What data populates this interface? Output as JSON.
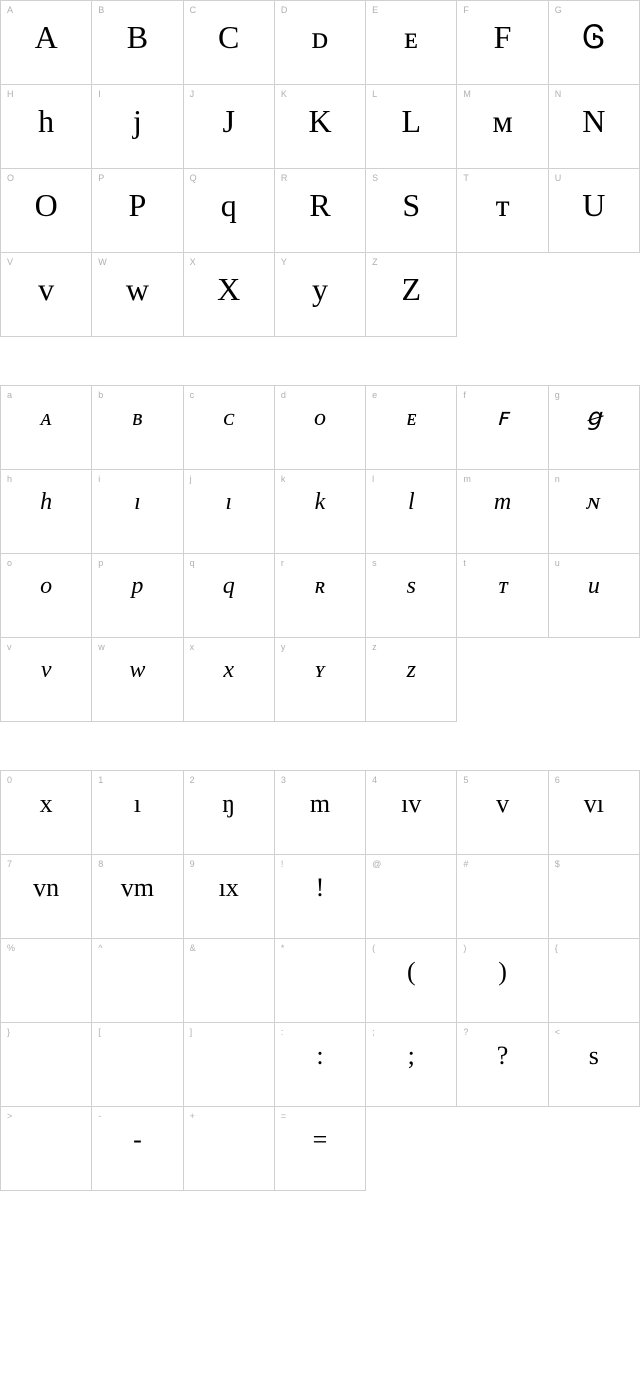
{
  "sections": {
    "uppercase": {
      "cells": [
        {
          "label": "A",
          "glyph": "A"
        },
        {
          "label": "B",
          "glyph": "B"
        },
        {
          "label": "C",
          "glyph": "C"
        },
        {
          "label": "D",
          "glyph": "ᴅ"
        },
        {
          "label": "E",
          "glyph": "ᴇ"
        },
        {
          "label": "F",
          "glyph": "F"
        },
        {
          "label": "G",
          "glyph": "Ꮆ"
        },
        {
          "label": "H",
          "glyph": "h"
        },
        {
          "label": "I",
          "glyph": "j"
        },
        {
          "label": "J",
          "glyph": "J"
        },
        {
          "label": "K",
          "glyph": "K"
        },
        {
          "label": "L",
          "glyph": "L"
        },
        {
          "label": "M",
          "glyph": "ᴍ"
        },
        {
          "label": "N",
          "glyph": "N"
        },
        {
          "label": "O",
          "glyph": "O"
        },
        {
          "label": "P",
          "glyph": "P"
        },
        {
          "label": "Q",
          "glyph": "q"
        },
        {
          "label": "R",
          "glyph": "R"
        },
        {
          "label": "S",
          "glyph": "S"
        },
        {
          "label": "T",
          "glyph": "ᴛ"
        },
        {
          "label": "U",
          "glyph": "U"
        },
        {
          "label": "V",
          "glyph": "ᴠ"
        },
        {
          "label": "W",
          "glyph": "ᴡ"
        },
        {
          "label": "X",
          "glyph": "X"
        },
        {
          "label": "Y",
          "glyph": "y"
        },
        {
          "label": "Z",
          "glyph": "Z"
        }
      ]
    },
    "lowercase": {
      "cells": [
        {
          "label": "a",
          "glyph": "ᴀ"
        },
        {
          "label": "b",
          "glyph": "ʙ"
        },
        {
          "label": "c",
          "glyph": "ᴄ"
        },
        {
          "label": "d",
          "glyph": "ᴏ"
        },
        {
          "label": "e",
          "glyph": "ᴇ"
        },
        {
          "label": "f",
          "glyph": "ꜰ"
        },
        {
          "label": "g",
          "glyph": "ꞡ"
        },
        {
          "label": "h",
          "glyph": "h"
        },
        {
          "label": "i",
          "glyph": "ı"
        },
        {
          "label": "j",
          "glyph": "ı"
        },
        {
          "label": "k",
          "glyph": "k"
        },
        {
          "label": "l",
          "glyph": "l"
        },
        {
          "label": "m",
          "glyph": "m"
        },
        {
          "label": "n",
          "glyph": "ɴ"
        },
        {
          "label": "o",
          "glyph": "o"
        },
        {
          "label": "p",
          "glyph": "p"
        },
        {
          "label": "q",
          "glyph": "q"
        },
        {
          "label": "r",
          "glyph": "ʀ"
        },
        {
          "label": "s",
          "glyph": "s"
        },
        {
          "label": "t",
          "glyph": "ᴛ"
        },
        {
          "label": "u",
          "glyph": "u"
        },
        {
          "label": "v",
          "glyph": "v"
        },
        {
          "label": "w",
          "glyph": "w"
        },
        {
          "label": "x",
          "glyph": "x"
        },
        {
          "label": "y",
          "glyph": "ʏ"
        },
        {
          "label": "z",
          "glyph": "z"
        }
      ]
    },
    "symbols": {
      "cells": [
        {
          "label": "0",
          "glyph": "x"
        },
        {
          "label": "1",
          "glyph": "ı"
        },
        {
          "label": "2",
          "glyph": "ŋ"
        },
        {
          "label": "3",
          "glyph": "m"
        },
        {
          "label": "4",
          "glyph": "ıv"
        },
        {
          "label": "5",
          "glyph": "v"
        },
        {
          "label": "6",
          "glyph": "vı"
        },
        {
          "label": "7",
          "glyph": "vn"
        },
        {
          "label": "8",
          "glyph": "vm"
        },
        {
          "label": "9",
          "glyph": "ıx"
        },
        {
          "label": "!",
          "glyph": "!"
        },
        {
          "label": "@",
          "glyph": ""
        },
        {
          "label": "#",
          "glyph": ""
        },
        {
          "label": "$",
          "glyph": ""
        },
        {
          "label": "%",
          "glyph": ""
        },
        {
          "label": "^",
          "glyph": ""
        },
        {
          "label": "&",
          "glyph": ""
        },
        {
          "label": "*",
          "glyph": ""
        },
        {
          "label": "(",
          "glyph": "("
        },
        {
          "label": ")",
          "glyph": ")"
        },
        {
          "label": "{",
          "glyph": ""
        },
        {
          "label": "}",
          "glyph": ""
        },
        {
          "label": "[",
          "glyph": ""
        },
        {
          "label": "]",
          "glyph": ""
        },
        {
          "label": ":",
          "glyph": ":"
        },
        {
          "label": ";",
          "glyph": ";"
        },
        {
          "label": "?",
          "glyph": "?"
        },
        {
          "label": "<",
          "glyph": "s"
        },
        {
          "label": ">",
          "glyph": ""
        },
        {
          "label": "-",
          "glyph": "-"
        },
        {
          "label": "+",
          "glyph": ""
        },
        {
          "label": "=",
          "glyph": "="
        }
      ]
    }
  },
  "colors": {
    "border": "#d0d0d0",
    "label": "#b0b0b0",
    "glyph": "#000000",
    "background": "#ffffff"
  }
}
